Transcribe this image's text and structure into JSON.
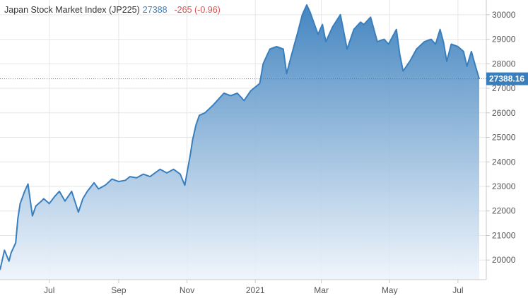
{
  "header": {
    "name": "Japan Stock Market Index (JP225)",
    "price": "27388",
    "change": "-265 (-0.96)"
  },
  "colors": {
    "line": "#3a7fbd",
    "fill_top": "#3a7fbd",
    "fill_bottom": "#eef4fb",
    "change_negative": "#d9534f",
    "last_value_bg": "#3a7fbd"
  },
  "chart_data": {
    "type": "area",
    "title": "Japan Stock Market Index (JP225)",
    "xlabel": "",
    "ylabel": "",
    "x_tick_labels": [
      "Jul",
      "Sep",
      "Nov",
      "2021",
      "Mar",
      "May",
      "Jul"
    ],
    "y_tick_labels": [
      "20000",
      "21000",
      "22000",
      "23000",
      "24000",
      "25000",
      "26000",
      "27000",
      "28000",
      "29000",
      "30000"
    ],
    "ylim": [
      19200,
      30600
    ],
    "grid": true,
    "y_axis_position": "right",
    "last_value_label": "27388.16",
    "series": [
      {
        "x": [
          "2020-05-18",
          "2020-05-20",
          "2020-05-22",
          "2020-05-26",
          "2020-05-28",
          "2020-06-01",
          "2020-06-03",
          "2020-06-05",
          "2020-06-09",
          "2020-06-12",
          "2020-06-16",
          "2020-06-19",
          "2020-06-24",
          "2020-06-26",
          "2020-07-01",
          "2020-07-06",
          "2020-07-10",
          "2020-07-15",
          "2020-07-21",
          "2020-07-27",
          "2020-07-31",
          "2020-08-04",
          "2020-08-10",
          "2020-08-14",
          "2020-08-20",
          "2020-08-26",
          "2020-09-01",
          "2020-09-07",
          "2020-09-11",
          "2020-09-17",
          "2020-09-23",
          "2020-09-29",
          "2020-10-02",
          "2020-10-08",
          "2020-10-14",
          "2020-10-20",
          "2020-10-26",
          "2020-10-30",
          "2020-11-04",
          "2020-11-06",
          "2020-11-09",
          "2020-11-12",
          "2020-11-17",
          "2020-11-24",
          "2020-11-30",
          "2020-12-04",
          "2020-12-10",
          "2020-12-16",
          "2020-12-22",
          "2020-12-28",
          "2021-01-05",
          "2021-01-08",
          "2021-01-14",
          "2021-01-20",
          "2021-01-26",
          "2021-01-29",
          "2021-02-02",
          "2021-02-08",
          "2021-02-12",
          "2021-02-16",
          "2021-02-19",
          "2021-02-26",
          "2021-03-02",
          "2021-03-05",
          "2021-03-11",
          "2021-03-18",
          "2021-03-24",
          "2021-03-30",
          "2021-04-05",
          "2021-04-08",
          "2021-04-14",
          "2021-04-20",
          "2021-04-26",
          "2021-04-30",
          "2021-05-07",
          "2021-05-10",
          "2021-05-13",
          "2021-05-19",
          "2021-05-25",
          "2021-06-01",
          "2021-06-07",
          "2021-06-11",
          "2021-06-15",
          "2021-06-18",
          "2021-06-21",
          "2021-06-25",
          "2021-07-01",
          "2021-07-06",
          "2021-07-09",
          "2021-07-13",
          "2021-07-16",
          "2021-07-20"
        ],
        "values": [
          19600,
          20000,
          20400,
          19950,
          20300,
          20700,
          21700,
          22300,
          22800,
          23100,
          21800,
          22200,
          22400,
          22500,
          22300,
          22600,
          22800,
          22400,
          22800,
          21950,
          22500,
          22800,
          23150,
          22900,
          23050,
          23300,
          23200,
          23250,
          23400,
          23350,
          23500,
          23400,
          23500,
          23700,
          23550,
          23700,
          23500,
          23050,
          24300,
          24900,
          25500,
          25900,
          26000,
          26300,
          26600,
          26800,
          26700,
          26800,
          26500,
          26900,
          27200,
          28000,
          28600,
          28700,
          28600,
          27600,
          28300,
          29300,
          30000,
          30400,
          30100,
          29200,
          29600,
          28900,
          29500,
          30000,
          28600,
          29400,
          29700,
          29600,
          29900,
          28900,
          29000,
          28800,
          29400,
          28400,
          27700,
          28100,
          28600,
          28900,
          29000,
          28800,
          29400,
          28900,
          28100,
          28800,
          28700,
          28500,
          27900,
          28500,
          28000,
          27388
        ]
      }
    ]
  }
}
